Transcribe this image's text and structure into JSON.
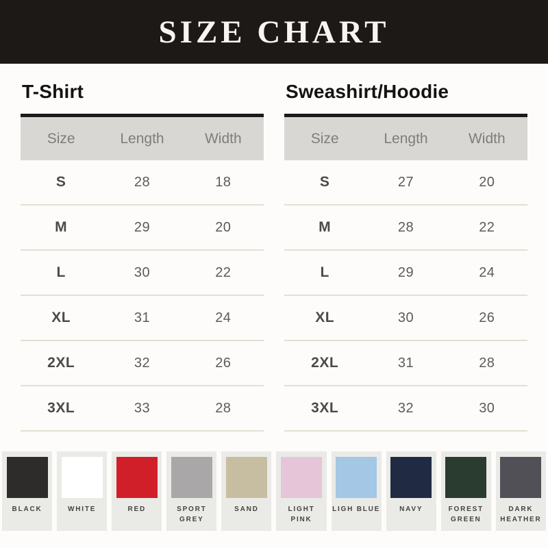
{
  "banner": {
    "title": "SIZE CHART"
  },
  "tables": [
    {
      "title": "T-Shirt",
      "columns": [
        "Size",
        "Length",
        "Width"
      ],
      "rows": [
        [
          "S",
          "28",
          "18"
        ],
        [
          "M",
          "29",
          "20"
        ],
        [
          "L",
          "30",
          "22"
        ],
        [
          "XL",
          "31",
          "24"
        ],
        [
          "2XL",
          "32",
          "26"
        ],
        [
          "3XL",
          "33",
          "28"
        ]
      ]
    },
    {
      "title": "Sweashirt/Hoodie",
      "columns": [
        "Size",
        "Length",
        "Width"
      ],
      "rows": [
        [
          "S",
          "27",
          "20"
        ],
        [
          "M",
          "28",
          "22"
        ],
        [
          "L",
          "29",
          "24"
        ],
        [
          "XL",
          "30",
          "26"
        ],
        [
          "2XL",
          "31",
          "28"
        ],
        [
          "3XL",
          "32",
          "30"
        ]
      ]
    }
  ],
  "swatches": [
    {
      "label": "BLACK",
      "hex": "#2e2b2b"
    },
    {
      "label": "WHITE",
      "hex": "#ffffff"
    },
    {
      "label": "RED",
      "hex": "#d01f29"
    },
    {
      "label": "SPORT GREY",
      "hex": "#a9a7a8"
    },
    {
      "label": "SAND",
      "hex": "#c7bea2"
    },
    {
      "label": "LIGHT PINK",
      "hex": "#e5c5d7"
    },
    {
      "label": "LIGH BLUE",
      "hex": "#a3c7e4"
    },
    {
      "label": "NAVY",
      "hex": "#212a43"
    },
    {
      "label": "FOREST GREEN",
      "hex": "#2a3b30"
    },
    {
      "label": "DARK HEATHER",
      "hex": "#525057"
    }
  ],
  "chart_data": [
    {
      "type": "table",
      "title": "T-Shirt",
      "columns": [
        "Size",
        "Length",
        "Width"
      ],
      "rows": [
        [
          "S",
          28,
          18
        ],
        [
          "M",
          29,
          20
        ],
        [
          "L",
          30,
          22
        ],
        [
          "XL",
          31,
          24
        ],
        [
          "2XL",
          32,
          26
        ],
        [
          "3XL",
          33,
          28
        ]
      ]
    },
    {
      "type": "table",
      "title": "Sweashirt/Hoodie",
      "columns": [
        "Size",
        "Length",
        "Width"
      ],
      "rows": [
        [
          "S",
          27,
          20
        ],
        [
          "M",
          28,
          22
        ],
        [
          "L",
          29,
          24
        ],
        [
          "XL",
          30,
          26
        ],
        [
          "2XL",
          31,
          28
        ],
        [
          "3XL",
          32,
          30
        ]
      ]
    }
  ]
}
